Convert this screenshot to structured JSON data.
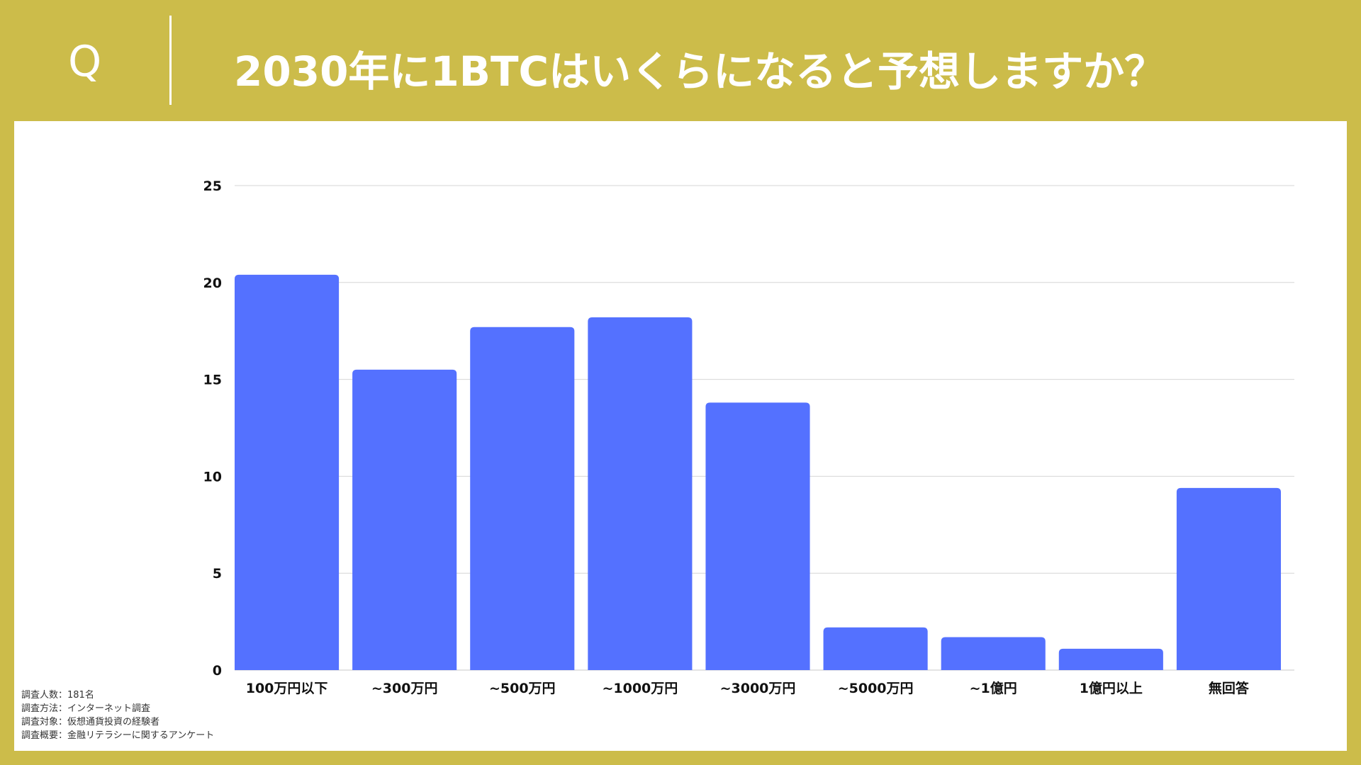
{
  "header": {
    "q_label": "Q",
    "title": "2030年に1BTCはいくらになると予想しますか？"
  },
  "colors": {
    "background": "#ccbc4a",
    "panel": "#ffffff",
    "bar": "#5471ff",
    "grid": "#d6d6d6",
    "text": "#111111"
  },
  "chart_data": {
    "type": "bar",
    "categories": [
      "100万円以下",
      "~300万円",
      "~500万円",
      "~1000万円",
      "~3000万円",
      "~5000万円",
      "~1億円",
      "1億円以上",
      "無回答"
    ],
    "values": [
      20.4,
      15.5,
      17.7,
      18.2,
      13.8,
      2.2,
      1.7,
      1.1,
      9.4
    ],
    "ylim": [
      0,
      25
    ],
    "yticks": [
      0,
      5,
      10,
      15,
      20,
      25
    ],
    "grid": true,
    "legend": "none"
  },
  "notes": [
    "調査人数：181名",
    "調査方法：インターネット調査",
    "調査対象：仮想通貨投資の経験者",
    "調査概要：金融リテラシーに関するアンケート"
  ]
}
